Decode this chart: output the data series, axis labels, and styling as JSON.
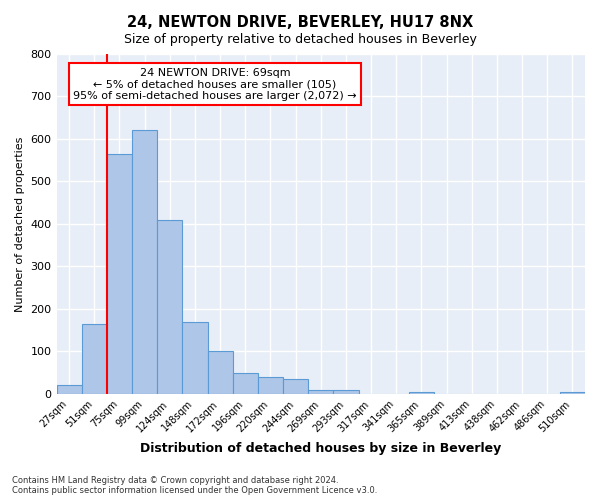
{
  "title": "24, NEWTON DRIVE, BEVERLEY, HU17 8NX",
  "subtitle": "Size of property relative to detached houses in Beverley",
  "xlabel": "Distribution of detached houses by size in Beverley",
  "ylabel": "Number of detached properties",
  "bar_labels": [
    "27sqm",
    "51sqm",
    "75sqm",
    "99sqm",
    "124sqm",
    "148sqm",
    "172sqm",
    "196sqm",
    "220sqm",
    "244sqm",
    "269sqm",
    "293sqm",
    "317sqm",
    "341sqm",
    "365sqm",
    "389sqm",
    "413sqm",
    "438sqm",
    "462sqm",
    "486sqm",
    "510sqm"
  ],
  "bar_heights": [
    20,
    165,
    565,
    620,
    410,
    170,
    100,
    50,
    40,
    35,
    10,
    10,
    0,
    0,
    5,
    0,
    0,
    0,
    0,
    0,
    5
  ],
  "bar_color": "#aec6e8",
  "bar_edge_color": "#5b9bd5",
  "bg_color": "#e8eef7",
  "grid_color": "#ffffff",
  "vline_color": "red",
  "annotation_title": "24 NEWTON DRIVE: 69sqm",
  "annotation_line1": "← 5% of detached houses are smaller (105)",
  "annotation_line2": "95% of semi-detached houses are larger (2,072) →",
  "annotation_box_color": "#ffffff",
  "annotation_box_edge": "red",
  "ylim": [
    0,
    800
  ],
  "yticks": [
    0,
    100,
    200,
    300,
    400,
    500,
    600,
    700,
    800
  ],
  "footer_line1": "Contains HM Land Registry data © Crown copyright and database right 2024.",
  "footer_line2": "Contains public sector information licensed under the Open Government Licence v3.0."
}
